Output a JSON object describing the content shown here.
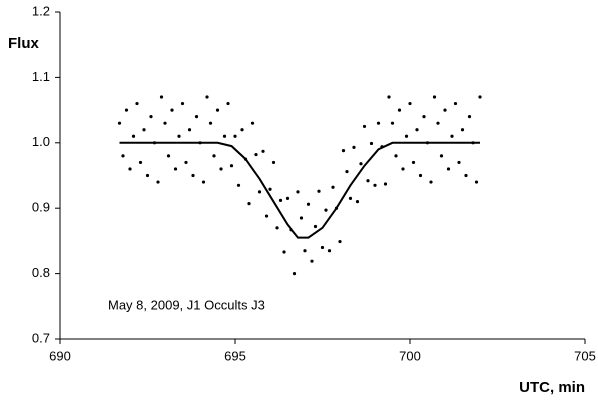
{
  "chart_data": {
    "type": "scatter",
    "ylabel": "Flux",
    "xlabel": "UTC, min",
    "annotation": "May 8, 2009, J1 Occults J3",
    "xlim": [
      690,
      705
    ],
    "xticks": [
      690,
      695,
      700,
      705
    ],
    "ylim": [
      0.7,
      1.2
    ],
    "yticks": [
      0.7,
      0.8,
      0.9,
      {
        "value": 1.0,
        "label": "1.0"
      },
      1.1,
      1.2
    ],
    "points": {
      "color": "#000000",
      "x": [
        691.7,
        691.8,
        691.9,
        692.0,
        692.1,
        692.2,
        692.3,
        692.4,
        692.5,
        692.6,
        692.7,
        692.8,
        692.9,
        693.0,
        693.1,
        693.2,
        693.3,
        693.4,
        693.5,
        693.6,
        693.7,
        693.8,
        693.9,
        694.0,
        694.1,
        694.2,
        694.3,
        694.4,
        694.5,
        694.6,
        694.7,
        694.8,
        694.9,
        695.0,
        695.1,
        695.2,
        695.3,
        695.4,
        695.5,
        695.6,
        695.7,
        695.8,
        695.9,
        696.0,
        696.1,
        696.2,
        696.3,
        696.4,
        696.5,
        696.6,
        696.7,
        696.8,
        696.9,
        697.0,
        697.1,
        697.2,
        697.3,
        697.4,
        697.5,
        697.6,
        697.7,
        697.8,
        697.9,
        698.0,
        698.1,
        698.2,
        698.3,
        698.4,
        698.5,
        698.6,
        698.7,
        698.8,
        698.9,
        699.0,
        699.1,
        699.2,
        699.3,
        699.4,
        699.5,
        699.6,
        699.7,
        699.8,
        699.9,
        700.0,
        700.1,
        700.2,
        700.3,
        700.4,
        700.5,
        700.6,
        700.7,
        700.8,
        700.9,
        701.0,
        701.1,
        701.2,
        701.3,
        701.4,
        701.5,
        701.6,
        701.7,
        701.8,
        701.9,
        702.0
      ],
      "y": [
        1.03,
        0.98,
        1.05,
        0.96,
        1.01,
        1.06,
        0.97,
        1.02,
        0.95,
        1.04,
        1.0,
        0.94,
        1.07,
        1.03,
        0.98,
        1.05,
        0.96,
        1.01,
        1.06,
        0.97,
        1.02,
        0.95,
        1.04,
        1.0,
        0.94,
        1.07,
        1.03,
        0.98,
        1.05,
        0.96,
        1.01,
        1.06,
        0.965,
        1.01,
        0.935,
        1.02,
        0.975,
        0.907,
        1.03,
        0.982,
        0.925,
        0.987,
        0.888,
        0.929,
        0.97,
        0.87,
        0.912,
        0.833,
        0.915,
        0.867,
        0.8,
        0.925,
        0.885,
        0.835,
        0.906,
        0.819,
        0.872,
        0.926,
        0.84,
        0.897,
        0.835,
        0.932,
        0.9,
        0.849,
        0.988,
        0.956,
        0.915,
        0.993,
        0.91,
        0.968,
        1.025,
        0.942,
        0.999,
        0.935,
        1.03,
        0.994,
        0.937,
        1.07,
        1.03,
        0.98,
        1.05,
        0.96,
        1.01,
        1.06,
        0.97,
        1.02,
        0.95,
        1.04,
        1.0,
        0.94,
        1.07,
        1.03,
        0.98,
        1.05,
        0.96,
        1.01,
        1.06,
        0.97,
        1.02,
        0.95,
        1.04,
        1.0,
        0.94,
        1.07
      ]
    },
    "fit": {
      "color": "#000000",
      "x": [
        691.7,
        694.5,
        694.9,
        695.3,
        695.7,
        696.1,
        696.5,
        696.8,
        697.1,
        697.5,
        697.9,
        698.3,
        698.7,
        699.1,
        699.5,
        702.0
      ],
      "y": [
        1.0,
        1.0,
        0.995,
        0.975,
        0.945,
        0.91,
        0.875,
        0.855,
        0.855,
        0.87,
        0.9,
        0.935,
        0.965,
        0.99,
        1.0,
        1.0
      ]
    }
  }
}
